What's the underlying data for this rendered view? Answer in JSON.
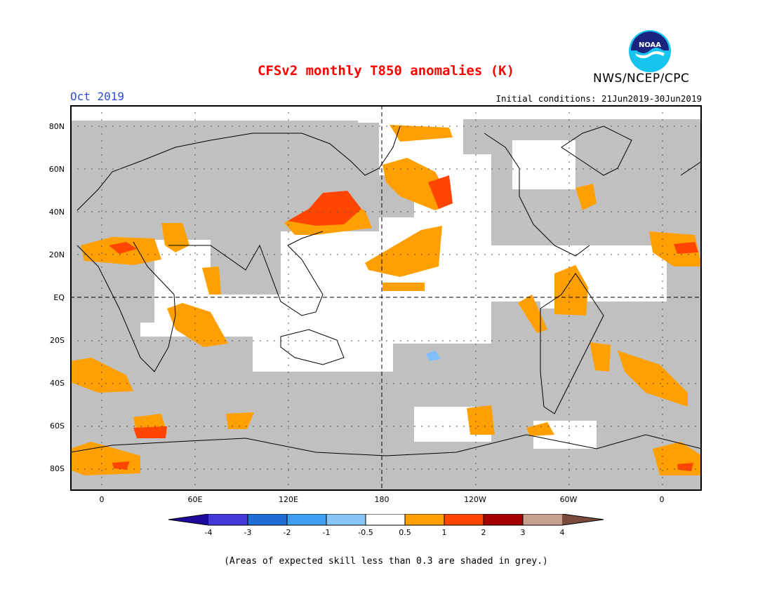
{
  "header": {
    "title": "CFSv2 monthly T850 anomalies (K)",
    "month": "Oct 2019",
    "initial_conditions": "Initial conditions: 21Jun2019-30Jun2019",
    "agency": "NWS/NCEP/CPC",
    "logo_text": "NOAA"
  },
  "map": {
    "lat_labels": [
      "80N",
      "60N",
      "40N",
      "20N",
      "EQ",
      "20S",
      "40S",
      "60S",
      "80S"
    ],
    "lon_labels": [
      "0",
      "60E",
      "120E",
      "180",
      "120W",
      "60W",
      "0"
    ],
    "colors": {
      "grey_mask": "#c0c0c0",
      "ocean": "#ffffff",
      "orange": "#ffa000",
      "red_orange": "#ff4500",
      "light_blue": "#7fbfff"
    }
  },
  "legend": {
    "tick_labels": [
      "-4",
      "-3",
      "-2",
      "-1",
      "-0.5",
      "0.5",
      "1",
      "2",
      "3",
      "4"
    ],
    "bins": [
      {
        "color": "#1c0a9c"
      },
      {
        "color": "#4338d8"
      },
      {
        "color": "#1f6ed8"
      },
      {
        "color": "#3f9ef0"
      },
      {
        "color": "#88c6f8"
      },
      {
        "color": "#ffffff"
      },
      {
        "color": "#ffa000"
      },
      {
        "color": "#ff4500"
      },
      {
        "color": "#a50000"
      },
      {
        "color": "#c8a090"
      },
      {
        "color": "#7a4a3a"
      }
    ]
  },
  "footnote": "(Areas of expected skill less than 0.3 are shaded in grey.)"
}
